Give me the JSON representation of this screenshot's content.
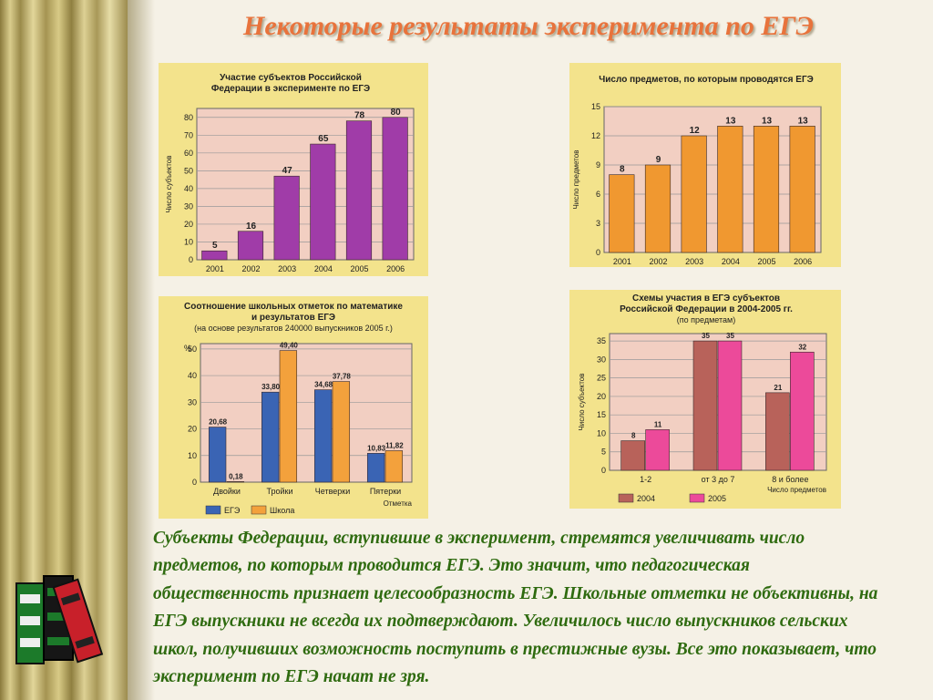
{
  "slide": {
    "title": "Некоторые результаты эксперимента по ЕГЭ",
    "body": "Субъекты Федерации, вступившие в эксперимент, стремятся увеличивать число предметов, по которым проводится ЕГЭ. Это значит, что педагогическая общественность признает целесообразность ЕГЭ. Школьные отметки не объективны, на ЕГЭ выпускники не всегда их подтверждают. Увеличилось число выпускников сельских школ, получивших возможность поступить в престижные вузы. Все это показывает, что эксперимент по ЕГЭ начат не зря."
  },
  "colors": {
    "panel": "#f3e38c",
    "plot": "#f2cfc2",
    "purple": "#a03ca8",
    "orange": "#f09830",
    "blue": "#3a64b4",
    "light_orange": "#f3a13c",
    "brown": "#b8625a",
    "pink": "#ec4a9a",
    "title": "#e8733c",
    "body_text": "#2f6b10"
  },
  "chart_data": [
    {
      "type": "bar",
      "title": "Участие субъектов Российской Федерации в эксперименте по ЕГЭ",
      "ylabel": "Число субъектов",
      "categories": [
        "2001",
        "2002",
        "2003",
        "2004",
        "2005",
        "2006"
      ],
      "values": [
        5,
        16,
        47,
        65,
        78,
        80
      ],
      "labels": [
        "5",
        "16",
        "47",
        "65",
        "78",
        "80"
      ],
      "ylim": [
        0,
        85
      ],
      "yticks": [
        0,
        10,
        20,
        30,
        40,
        50,
        60,
        70,
        80
      ],
      "grid": true,
      "color": "#a03ca8"
    },
    {
      "type": "bar",
      "title": "Число предметов, по которым проводятся ЕГЭ",
      "ylabel": "Число предметов",
      "categories": [
        "2001",
        "2002",
        "2003",
        "2004",
        "2005",
        "2006"
      ],
      "values": [
        8,
        9,
        12,
        13,
        13,
        13
      ],
      "labels": [
        "8",
        "9",
        "12",
        "13",
        "13",
        "13"
      ],
      "ylim": [
        0,
        15
      ],
      "yticks": [
        0,
        3,
        6,
        9,
        12,
        15
      ],
      "grid": true,
      "color": "#f09830"
    },
    {
      "type": "bar",
      "title": "Соотношение школьных отметок по математике и результатов ЕГЭ",
      "subtitle": "(на основе результатов 240000 выпускников 2005 г.)",
      "ylabel": "%",
      "xlabel": "Отметка",
      "categories": [
        "Двойки",
        "Тройки",
        "Четверки",
        "Пятерки"
      ],
      "series": [
        {
          "name": "ЕГЭ",
          "values": [
            20.68,
            33.8,
            34.68,
            10.83
          ],
          "labels": [
            "20,68",
            "33,80",
            "34,68",
            "10,83"
          ],
          "color": "#3a64b4"
        },
        {
          "name": "Школа",
          "values": [
            0.18,
            49.4,
            37.78,
            11.82
          ],
          "labels": [
            "0,18",
            "49,40",
            "37,78",
            "11,82"
          ],
          "color": "#f3a13c"
        }
      ],
      "ylim": [
        0,
        52
      ],
      "yticks": [
        0,
        10,
        20,
        30,
        40,
        50
      ],
      "legend": "bottom-left",
      "grid": true
    },
    {
      "type": "bar",
      "title": "Схемы участия в ЕГЭ субъектов Российской Федерации в 2004-2005 гг.",
      "subtitle": "(по предметам)",
      "ylabel": "Число субъектов",
      "xlabel": "Число предметов",
      "categories": [
        "1-2",
        "от 3 до 7",
        "8 и более"
      ],
      "series": [
        {
          "name": "2004",
          "values": [
            8,
            35,
            21
          ],
          "labels": [
            "8",
            "35",
            "21"
          ],
          "color": "#b8625a"
        },
        {
          "name": "2005",
          "values": [
            11,
            35,
            32
          ],
          "labels": [
            "11",
            "35",
            "32"
          ],
          "color": "#ec4a9a"
        }
      ],
      "ylim": [
        0,
        37
      ],
      "yticks": [
        0,
        5,
        10,
        15,
        20,
        25,
        30,
        35
      ],
      "legend": "bottom",
      "grid": true
    }
  ]
}
